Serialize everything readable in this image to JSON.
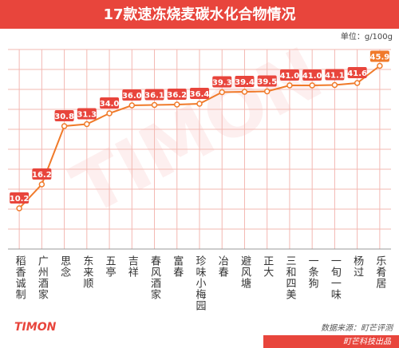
{
  "chart_data": {
    "type": "line",
    "title": "17款速冻烧麦碳水化合物情况",
    "unit": "单位：g/100g",
    "source": "数据来源：町芒评测",
    "credit": "町芒科技出品",
    "brand": "TIMON",
    "categories": [
      "稻香诚制",
      "广州酒家",
      "思念",
      "东来顺",
      "五亭",
      "吉祥",
      "春风酒家",
      "富春",
      "珍味小梅园",
      "冶春",
      "避风塘",
      "正大",
      "三和四美",
      "一条狗",
      "一旬一味",
      "杨过",
      "乐肴居"
    ],
    "values": [
      10.2,
      16.2,
      30.8,
      31.3,
      34.0,
      36.0,
      36.1,
      36.2,
      36.4,
      39.3,
      39.4,
      39.5,
      41.0,
      41.0,
      41.1,
      41.6,
      45.9
    ],
    "value_labels": [
      "10.2",
      "16.2",
      "30.8",
      "31.3",
      "34.0",
      "36.0",
      "36.1",
      "36.2",
      "36.4",
      "39.3",
      "39.4",
      "39.5",
      "41.0",
      "41.0",
      "41.1",
      "41.6",
      "45.9"
    ],
    "color": "#f07a2a",
    "label_color": "#e8453c",
    "grid_color": "#f3b8b2",
    "ylim": [
      0,
      50
    ],
    "yticks": [
      0,
      5,
      10,
      15,
      20,
      25,
      30,
      35,
      40,
      45,
      50
    ],
    "grid": true
  }
}
